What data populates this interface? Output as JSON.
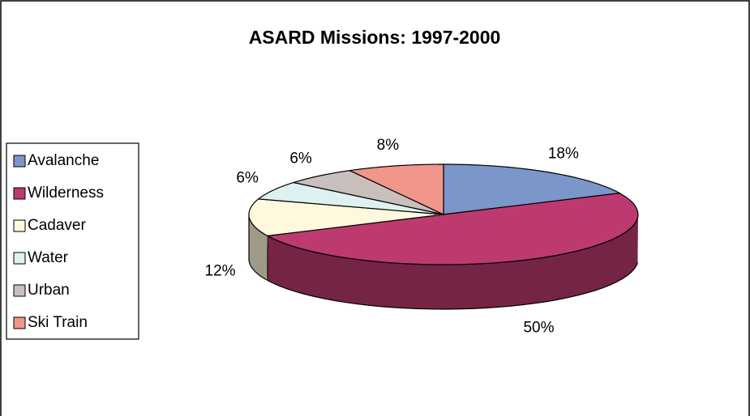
{
  "chart_data": {
    "type": "pie",
    "title": "ASARD Missions: 1997-2000",
    "categories": [
      "Avalanche",
      "Wilderness",
      "Cadaver",
      "Water",
      "Urban",
      "Ski Train"
    ],
    "values": [
      18,
      50,
      12,
      6,
      6,
      8
    ],
    "value_labels": [
      "18%",
      "50%",
      "12%",
      "6%",
      "6%",
      "8%"
    ],
    "colors": [
      "#7b96c8",
      "#bd3a70",
      "#fff8dc",
      "#ddf1f1",
      "#c9bfbc",
      "#f0968a"
    ],
    "legend": "left"
  }
}
